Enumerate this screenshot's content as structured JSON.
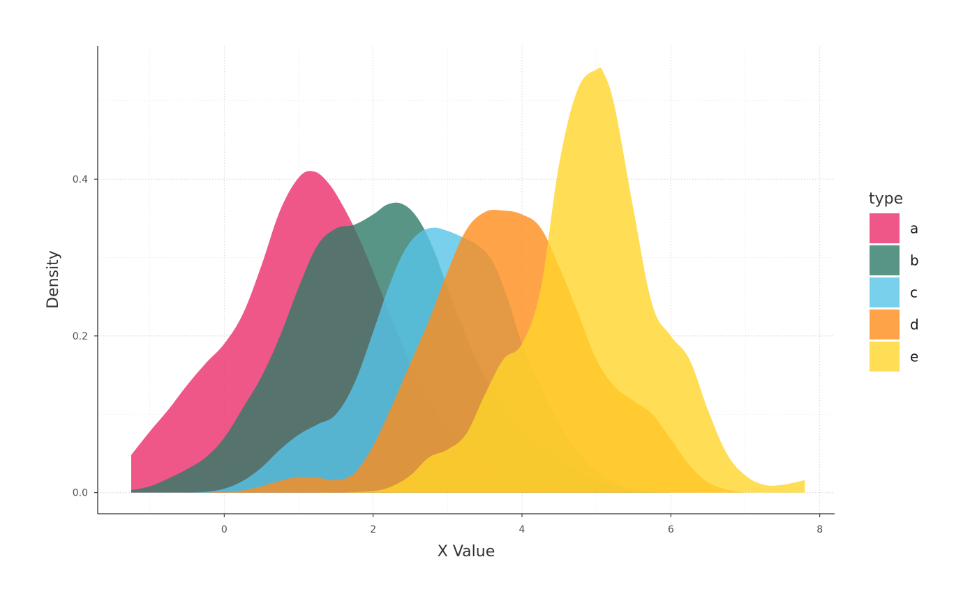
{
  "chart_data": {
    "type": "area",
    "subtype": "density",
    "xlabel": "X Value",
    "ylabel": "Density",
    "xlim": [
      -1.7,
      8.2
    ],
    "ylim": [
      -0.027,
      0.57
    ],
    "x_ticks": [
      0,
      2,
      4,
      6,
      8
    ],
    "y_ticks": [
      0.0,
      0.2,
      0.4
    ],
    "y_tick_labels": [
      "0.0",
      "0.2",
      "0.4"
    ],
    "grid": true,
    "legend": {
      "title": "type",
      "position": "right"
    },
    "series": [
      {
        "name": "a",
        "color": "#EC2D6B",
        "opacity": 0.8,
        "x": [
          -1.25,
          -1.0,
          -0.75,
          -0.5,
          -0.25,
          0.0,
          0.25,
          0.5,
          0.75,
          1.0,
          1.2,
          1.4,
          1.6,
          1.8,
          2.0,
          2.25,
          2.5,
          2.75,
          3.0,
          3.25,
          3.5,
          3.75,
          4.0,
          4.25,
          4.5,
          4.75,
          5.0,
          5.25,
          5.5
        ],
        "y": [
          0.048,
          0.078,
          0.106,
          0.137,
          0.165,
          0.19,
          0.228,
          0.29,
          0.36,
          0.402,
          0.41,
          0.395,
          0.365,
          0.327,
          0.282,
          0.222,
          0.165,
          0.118,
          0.082,
          0.057,
          0.039,
          0.026,
          0.017,
          0.011,
          0.007,
          0.004,
          0.002,
          0.001,
          0.0
        ]
      },
      {
        "name": "b",
        "color": "#2F7A68",
        "opacity": 0.8,
        "x": [
          -1.25,
          -1.0,
          -0.75,
          -0.5,
          -0.25,
          0.0,
          0.25,
          0.5,
          0.75,
          1.0,
          1.25,
          1.5,
          1.75,
          2.0,
          2.2,
          2.4,
          2.6,
          2.8,
          3.0,
          3.25,
          3.5,
          3.75,
          4.0,
          4.25,
          4.5,
          4.75,
          5.0,
          5.25,
          5.5,
          5.75,
          6.0
        ],
        "y": [
          0.003,
          0.008,
          0.018,
          0.03,
          0.045,
          0.07,
          0.108,
          0.148,
          0.2,
          0.262,
          0.315,
          0.337,
          0.342,
          0.355,
          0.368,
          0.368,
          0.35,
          0.313,
          0.262,
          0.2,
          0.148,
          0.11,
          0.082,
          0.06,
          0.043,
          0.027,
          0.015,
          0.007,
          0.003,
          0.001,
          0.0
        ]
      },
      {
        "name": "c",
        "color": "#58C4E8",
        "opacity": 0.8,
        "x": [
          -0.5,
          -0.25,
          0.0,
          0.25,
          0.5,
          0.75,
          1.0,
          1.25,
          1.5,
          1.75,
          2.0,
          2.2,
          2.4,
          2.6,
          2.8,
          3.0,
          3.2,
          3.4,
          3.6,
          3.8,
          4.0,
          4.25,
          4.5,
          4.75,
          5.0,
          5.25,
          5.5,
          5.75
        ],
        "y": [
          0.0,
          0.001,
          0.005,
          0.015,
          0.032,
          0.055,
          0.074,
          0.087,
          0.1,
          0.14,
          0.205,
          0.26,
          0.305,
          0.33,
          0.338,
          0.334,
          0.326,
          0.316,
          0.296,
          0.25,
          0.19,
          0.135,
          0.088,
          0.052,
          0.027,
          0.012,
          0.004,
          0.0
        ]
      },
      {
        "name": "d",
        "color": "#FF8C1A",
        "opacity": 0.8,
        "x": [
          -0.25,
          0.0,
          0.25,
          0.5,
          0.75,
          1.0,
          1.25,
          1.5,
          1.75,
          2.0,
          2.25,
          2.5,
          2.75,
          3.0,
          3.25,
          3.5,
          3.75,
          4.0,
          4.25,
          4.5,
          4.75,
          5.0,
          5.25,
          5.5,
          5.75,
          6.0,
          6.25,
          6.5,
          6.75,
          7.0
        ],
        "y": [
          0.0,
          0.001,
          0.003,
          0.008,
          0.015,
          0.02,
          0.019,
          0.016,
          0.025,
          0.06,
          0.11,
          0.165,
          0.22,
          0.282,
          0.335,
          0.358,
          0.36,
          0.355,
          0.338,
          0.288,
          0.23,
          0.17,
          0.135,
          0.117,
          0.1,
          0.068,
          0.035,
          0.013,
          0.004,
          0.0
        ]
      },
      {
        "name": "e",
        "color": "#FFD42A",
        "opacity": 0.8,
        "x": [
          1.0,
          1.5,
          2.0,
          2.25,
          2.5,
          2.75,
          3.0,
          3.25,
          3.5,
          3.75,
          4.0,
          4.25,
          4.5,
          4.75,
          5.0,
          5.1,
          5.25,
          5.5,
          5.75,
          6.0,
          6.25,
          6.5,
          6.75,
          7.0,
          7.25,
          7.5,
          7.8
        ],
        "y": [
          0.0,
          0.0,
          0.002,
          0.008,
          0.022,
          0.045,
          0.055,
          0.075,
          0.125,
          0.17,
          0.19,
          0.26,
          0.42,
          0.515,
          0.54,
          0.535,
          0.49,
          0.36,
          0.24,
          0.2,
          0.17,
          0.105,
          0.05,
          0.022,
          0.01,
          0.01,
          0.016
        ]
      }
    ]
  }
}
